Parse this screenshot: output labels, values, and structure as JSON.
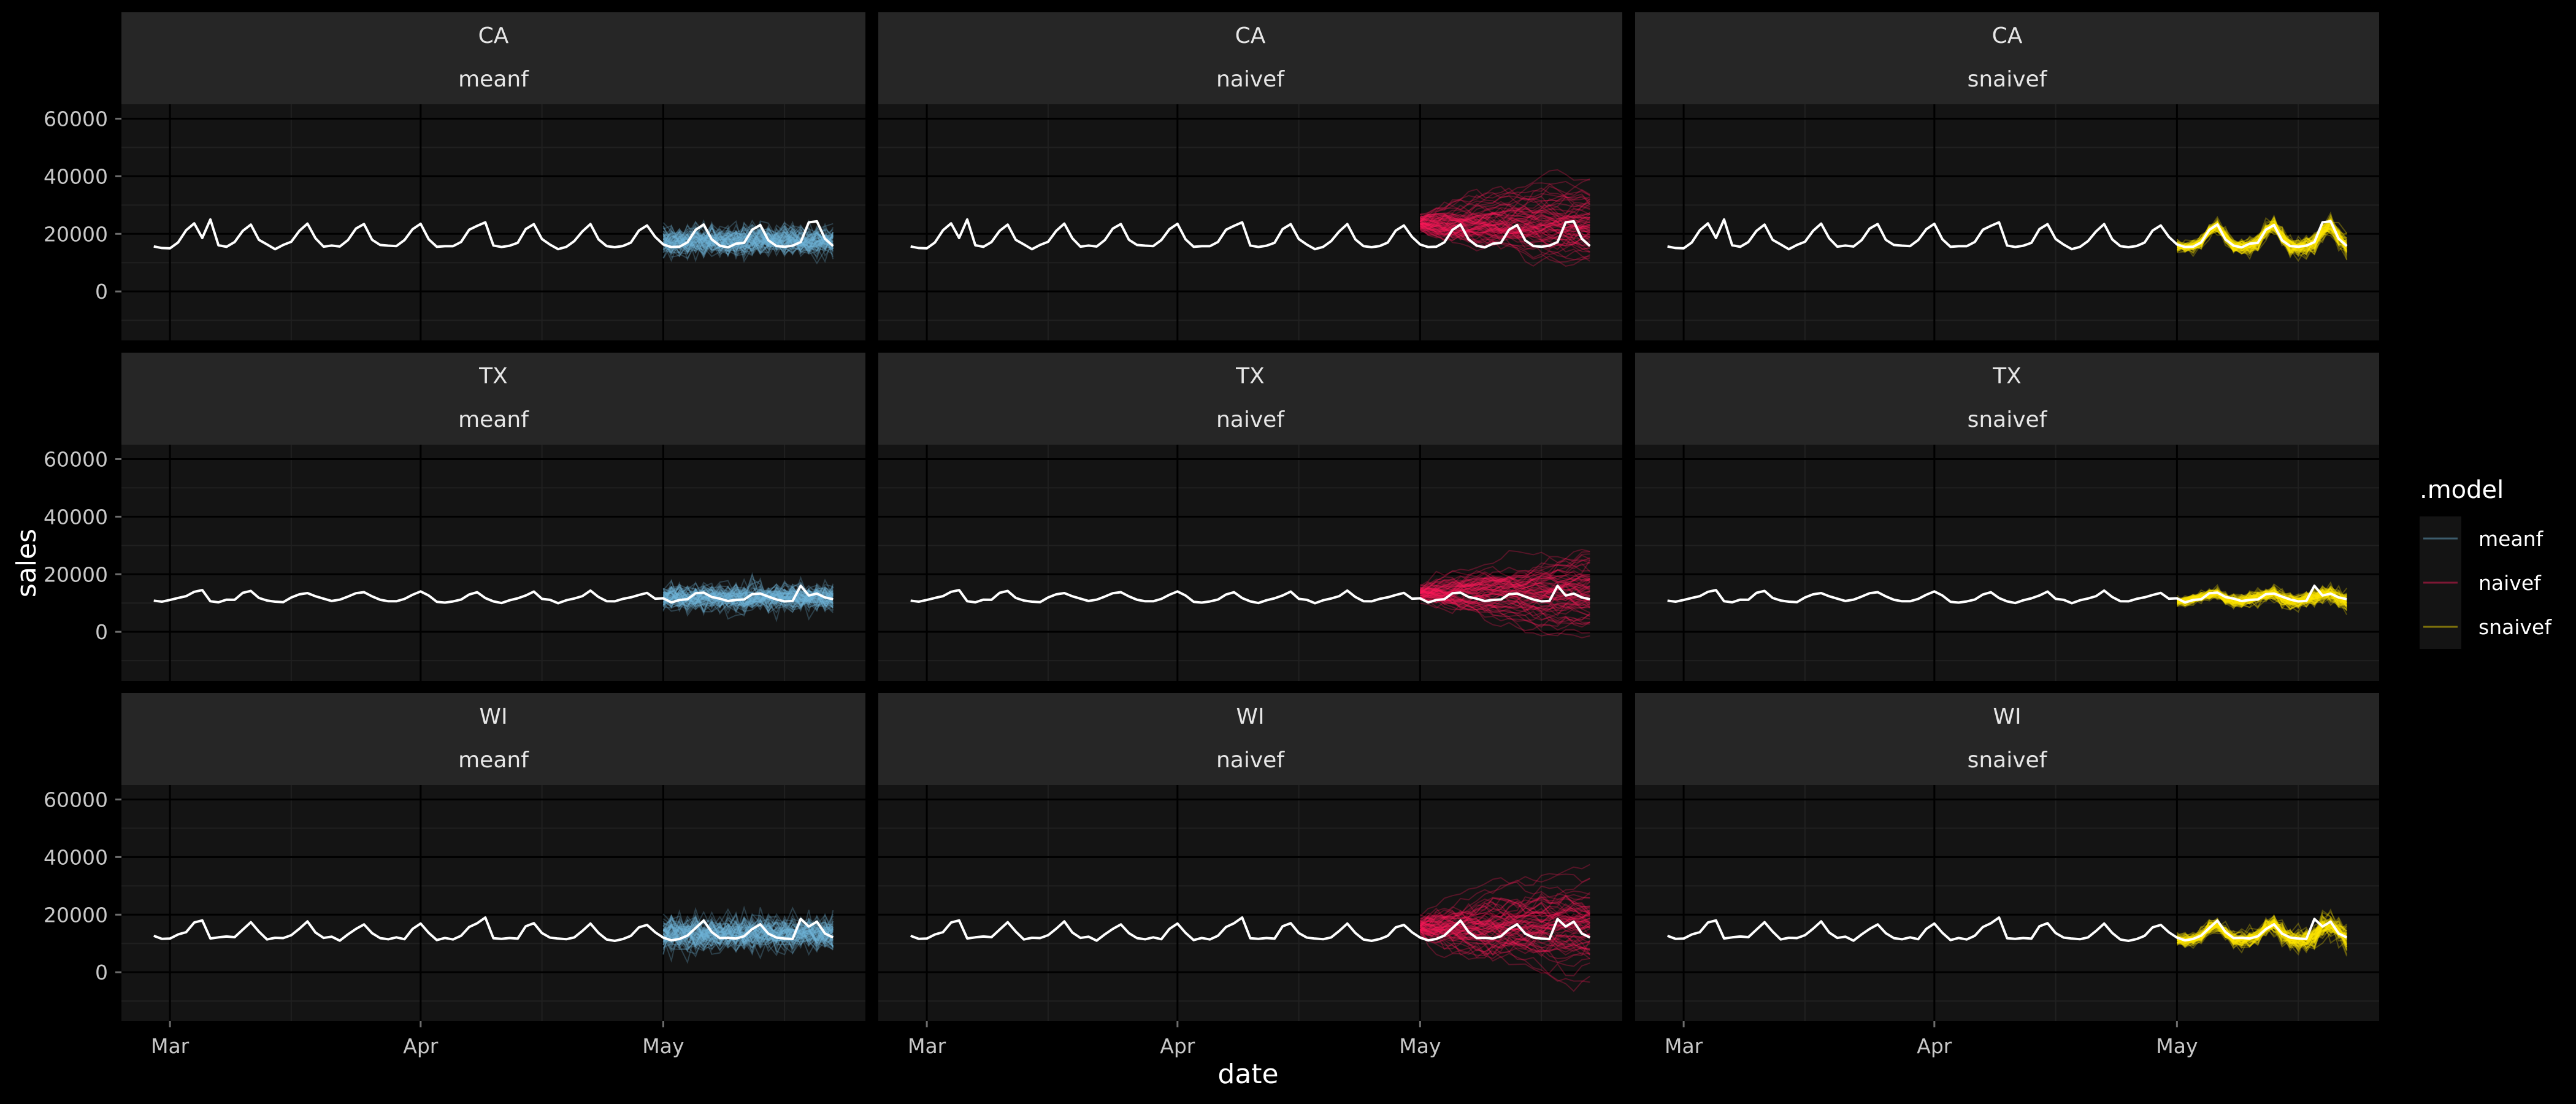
{
  "chart_data": {
    "type": "line",
    "x_label": "date",
    "y_label": "sales",
    "x_ticks": [
      "Mar",
      "Apr",
      "May"
    ],
    "x_tick_dates": [
      "2016-03-01",
      "2016-04-01",
      "2016-05-01"
    ],
    "y_ticks": [
      0,
      20000,
      40000,
      60000
    ],
    "y_range": [
      -17000,
      65000
    ],
    "x_range": [
      "2016-02-24",
      "2016-05-26"
    ],
    "grid": true,
    "legend": {
      "title": ".model",
      "position": "right",
      "entries": [
        {
          "name": "meanf",
          "color": "#6fb3d8"
        },
        {
          "name": "naivef",
          "color": "#ff1a5a"
        },
        {
          "name": "snaivef",
          "color": "#ffe500"
        }
      ]
    },
    "row_facets": [
      "CA",
      "TX",
      "WI"
    ],
    "col_facets": [
      "meanf",
      "naivef",
      "snaivef"
    ],
    "history_range": [
      "2016-02-28",
      "2016-04-30"
    ],
    "forecast_range": [
      "2016-05-01",
      "2016-05-22"
    ],
    "forecast_simulation_paths": "approx. 100 per panel",
    "colors": {
      "background": "#000000",
      "panel": "#141414",
      "strip": "#262626",
      "grid_major": "#000000",
      "grid_minor": "#202020",
      "actual_line": "#ffffff"
    },
    "series": [
      {
        "name": "CA",
        "weekly_pattern": [
          16000,
          15500,
          15800,
          17000,
          21500,
          23500,
          18000
        ],
        "level": 17500,
        "noise": 800,
        "naive_start": 23500,
        "peaks": [
          {
            "date": "2016-03-06",
            "value": 25000
          },
          {
            "date": "2016-04-09",
            "value": 24000
          },
          {
            "date": "2016-05-19",
            "value": 24000
          }
        ]
      },
      {
        "name": "TX",
        "weekly_pattern": [
          11000,
          10500,
          10800,
          11500,
          13000,
          14000,
          12000
        ],
        "level": 11800,
        "noise": 700,
        "naive_start": 13500,
        "peaks": [
          {
            "date": "2016-03-05",
            "value": 14500
          },
          {
            "date": "2016-05-18",
            "value": 16000
          }
        ]
      },
      {
        "name": "WI",
        "weekly_pattern": [
          12000,
          11500,
          11800,
          12500,
          15000,
          17000,
          13500
        ],
        "level": 13500,
        "noise": 900,
        "naive_start": 15500,
        "peaks": [
          {
            "date": "2016-03-05",
            "value": 18000
          },
          {
            "date": "2016-04-09",
            "value": 19000
          },
          {
            "date": "2016-05-18",
            "value": 18500
          }
        ]
      }
    ]
  }
}
